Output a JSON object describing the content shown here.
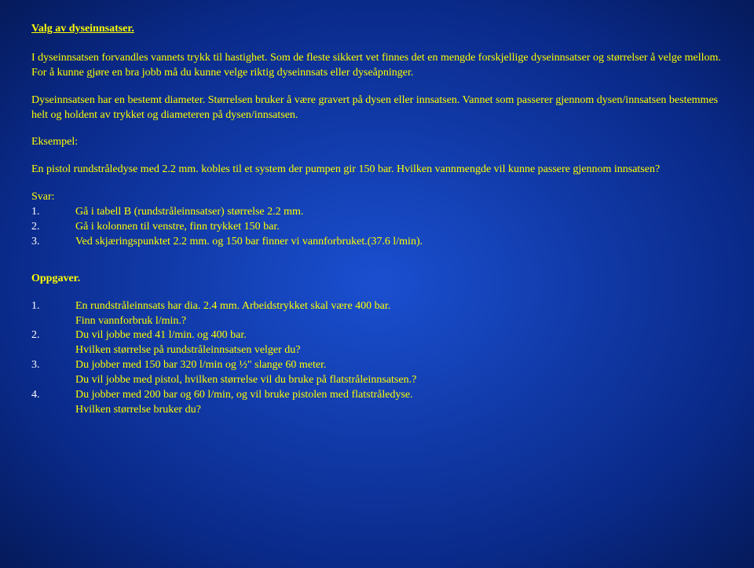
{
  "title": "Valg av dyseinnsatser.",
  "intro1": "I dyseinnsatsen forvandles vannets trykk til hastighet. Som de fleste sikkert vet finnes det en mengde forskjellige dyseinnsatser og størrelser å velge mellom. For å kunne gjøre en bra jobb må du kunne velge riktig dyseinnsats eller dyseåpninger.",
  "intro2": "Dyseinnsatsen har en bestemt diameter. Størrelsen bruker å være gravert på dysen eller innsatsen. Vannet som passerer gjennom dysen/innsatsen bestemmes helt og holdent av trykket og diameteren på dysen/innsatsen.",
  "eksempel_label": "Eksempel:",
  "eksempel_text": "En pistol rundstråledyse med 2.2 mm. kobles til et system der pumpen gir 150 bar. Hvilken vannmengde vil kunne passere gjennom innsatsen?",
  "svar_label": "Svar:",
  "svar": [
    {
      "n": "1.",
      "t": "Gå i tabell B (rundstråleinnsatser) størrelse 2.2 mm."
    },
    {
      "n": "2.",
      "t": "Gå i kolonnen til venstre, finn trykket 150 bar."
    },
    {
      "n": "3.",
      "t": "Ved skjæringspunktet 2.2 mm. og 150 bar finner vi vannforbruket.(37.6 l/min)."
    }
  ],
  "oppg_label": "Oppgaver.",
  "oppg": [
    {
      "n": "1.",
      "lines": [
        "En rundstråleinnsats har dia. 2.4 mm. Arbeidstrykket skal være 400 bar.",
        "Finn vannforbruk l/min.?"
      ]
    },
    {
      "n": "2.",
      "lines": [
        "Du vil jobbe med 41 l/min. og 400 bar.",
        "Hvilken størrelse på rundstråleinnsatsen velger du?"
      ]
    },
    {
      "n": "3.",
      "lines": [
        "Du jobber med 150 bar 320 l/min og ½\" slange 60 meter.",
        "Du vil jobbe med pistol, hvilken størrelse vil du bruke på flatstråleinnsatsen.?"
      ]
    },
    {
      "n": "4.",
      "lines": [
        "Du jobber med 200 bar og 60 l/min, og vil bruke pistolen med flatstråledyse.",
        "Hvilken størrelse bruker du?"
      ]
    }
  ]
}
